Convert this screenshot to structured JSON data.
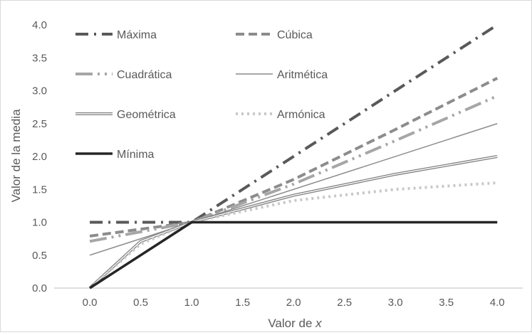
{
  "chart_data": {
    "type": "line",
    "title": "",
    "xlabel_prefix": "Valor de ",
    "xlabel_var": "x",
    "ylabel": "Valor de la media",
    "xlim": [
      -0.35,
      4.25
    ],
    "ylim": [
      0,
      4
    ],
    "x_ticks": [
      "0.0",
      "0.5",
      "1.0",
      "1.5",
      "2.0",
      "2.5",
      "3.0",
      "3.5",
      "4.0"
    ],
    "y_ticks": [
      "0.0",
      "0.5",
      "1.0",
      "1.5",
      "2.0",
      "2.5",
      "3.0",
      "3.5",
      "4.0"
    ],
    "grid": false,
    "legend_position": "top-left",
    "series": [
      {
        "name": "Máxima",
        "color": "#595959",
        "style": "dash-dot",
        "x": [
          0,
          1,
          4
        ],
        "y": [
          1,
          1,
          4
        ]
      },
      {
        "name": "Cúbica",
        "color": "#8c8c8c",
        "style": "dash",
        "x": [
          0,
          1,
          2,
          3,
          4
        ],
        "y": [
          0.79,
          1,
          1.65,
          2.41,
          3.19
        ]
      },
      {
        "name": "Cuadrática",
        "color": "#a6a6a6",
        "style": "long-dash-dot-dot",
        "x": [
          0,
          1,
          2,
          3,
          4
        ],
        "y": [
          0.71,
          1,
          1.58,
          2.24,
          2.92
        ]
      },
      {
        "name": "Aritmética",
        "color": "#8c8c8c",
        "style": "thin",
        "x": [
          0,
          1,
          4
        ],
        "y": [
          0.5,
          1,
          2.5
        ]
      },
      {
        "name": "Geométrica",
        "color": "#7f7f7f",
        "style": "double",
        "x": [
          0,
          0.5,
          1,
          2,
          3,
          4
        ],
        "y": [
          0,
          0.71,
          1,
          1.41,
          1.73,
          2
        ]
      },
      {
        "name": "Armónica",
        "color": "#c8c8c8",
        "style": "dot",
        "x": [
          0,
          0.5,
          1,
          2,
          3,
          4
        ],
        "y": [
          0,
          0.67,
          1,
          1.33,
          1.5,
          1.6
        ]
      },
      {
        "name": "Mínima",
        "color": "#262626",
        "style": "solid-thick",
        "x": [
          0,
          1,
          4
        ],
        "y": [
          0,
          1,
          1
        ]
      }
    ]
  }
}
